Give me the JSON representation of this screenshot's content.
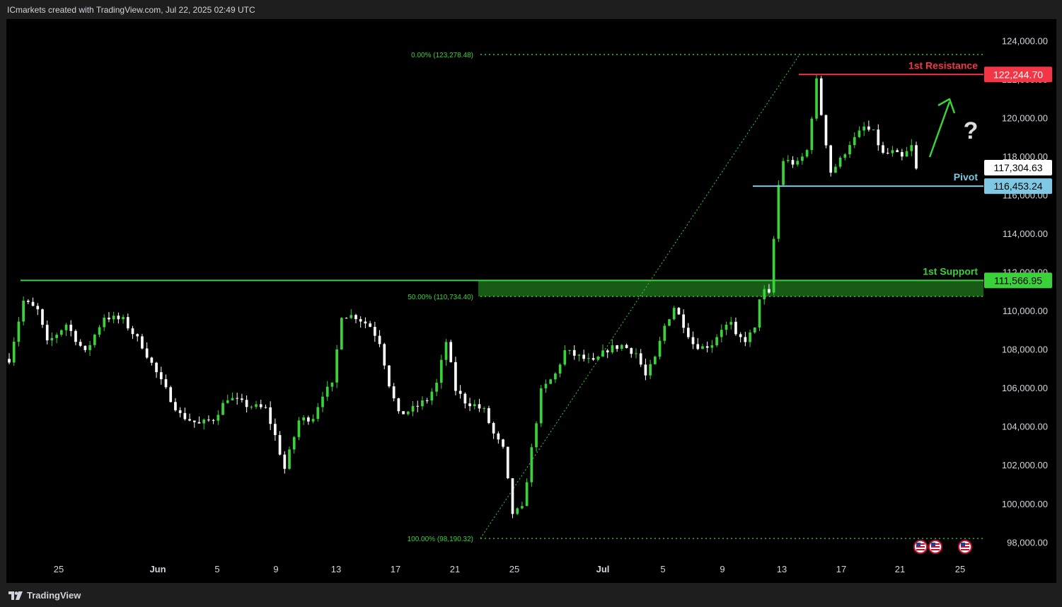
{
  "header": {
    "title": "ICmarkets created with TradingView.com, Jul 22, 2025 02:49 UTC"
  },
  "footer": {
    "brand": "TradingView"
  },
  "colors": {
    "background": "#000000",
    "up": "#3ad13a",
    "down": "#ffffff",
    "resistance": "#f23645",
    "pivot": "#7ec8e3",
    "support": "#3ad13a",
    "fib": "#3ad13a",
    "axis_text": "#d1d4dc"
  },
  "chart_data": {
    "type": "candlestick",
    "x_axis": {
      "ticks": [
        "25",
        "Jun",
        "5",
        "9",
        "13",
        "17",
        "21",
        "25",
        "Jul",
        "5",
        "9",
        "13",
        "17",
        "21",
        "25"
      ]
    },
    "y_axis": {
      "ticks": [
        "98,000.00",
        "100,000.00",
        "102,000.00",
        "104,000.00",
        "106,000.00",
        "108,000.00",
        "110,000.00",
        "112,000.00",
        "114,000.00",
        "116,000.00",
        "118,000.00",
        "120,000.00",
        "122,000.00",
        "124,000.00"
      ],
      "ylim": [
        97500,
        125000
      ]
    },
    "levels": [
      {
        "name": "1st Resistance",
        "value": "122,244.70",
        "price": 122244.7
      },
      {
        "name": "Pivot",
        "value": "116,453.24",
        "price": 116453.24
      },
      {
        "name": "1st Support",
        "value": "111,566.95",
        "price": 111566.95
      }
    ],
    "current_price": {
      "value": "117,304.63",
      "price": 117304.63
    },
    "fibonacci": [
      {
        "label": "0.00% (123,278.48)",
        "price": 123278.48
      },
      {
        "label": "50.00% (110,734.40)",
        "price": 110734.4
      },
      {
        "label": "100.00% (98,190.32)",
        "price": 98190.32
      }
    ],
    "annotations": {
      "question": "?"
    },
    "close_path": [
      [
        0,
        107500
      ],
      [
        3,
        110500
      ],
      [
        6,
        110000
      ],
      [
        8,
        108300
      ],
      [
        12,
        109300
      ],
      [
        16,
        107800
      ],
      [
        20,
        109700
      ],
      [
        24,
        109500
      ],
      [
        28,
        108200
      ],
      [
        32,
        106300
      ],
      [
        36,
        104600
      ],
      [
        40,
        104100
      ],
      [
        43,
        104400
      ],
      [
        46,
        105500
      ],
      [
        50,
        105100
      ],
      [
        54,
        104900
      ],
      [
        56,
        103500
      ],
      [
        58,
        101800
      ],
      [
        61,
        104300
      ],
      [
        64,
        104500
      ],
      [
        66,
        105700
      ],
      [
        68,
        106100
      ],
      [
        70,
        109800
      ],
      [
        73,
        109700
      ],
      [
        76,
        109200
      ],
      [
        78,
        108400
      ],
      [
        80,
        106200
      ],
      [
        82,
        104600
      ],
      [
        85,
        104900
      ],
      [
        88,
        105400
      ],
      [
        90,
        106200
      ],
      [
        92,
        108400
      ],
      [
        94,
        105900
      ],
      [
        96,
        105300
      ],
      [
        98,
        105100
      ],
      [
        100,
        104800
      ],
      [
        102,
        103600
      ],
      [
        104,
        102800
      ],
      [
        106,
        99500
      ],
      [
        108,
        99700
      ],
      [
        110,
        102800
      ],
      [
        112,
        105800
      ],
      [
        115,
        106700
      ],
      [
        117,
        107900
      ],
      [
        120,
        107600
      ],
      [
        123,
        107300
      ],
      [
        126,
        108000
      ],
      [
        129,
        108200
      ],
      [
        132,
        107800
      ],
      [
        134,
        106600
      ],
      [
        136,
        107500
      ],
      [
        138,
        109200
      ],
      [
        140,
        110200
      ],
      [
        142,
        109300
      ],
      [
        144,
        108300
      ],
      [
        146,
        108100
      ],
      [
        148,
        108300
      ],
      [
        150,
        109100
      ],
      [
        152,
        109300
      ],
      [
        153,
        108600
      ],
      [
        155,
        108500
      ],
      [
        157,
        109000
      ],
      [
        158,
        110700
      ],
      [
        159,
        111000
      ],
      [
        160,
        110800
      ],
      [
        161,
        113700
      ],
      [
        162,
        116500
      ],
      [
        163,
        117800
      ],
      [
        166,
        117600
      ],
      [
        168,
        118300
      ],
      [
        170,
        121900
      ],
      [
        171,
        120200
      ],
      [
        173,
        117200
      ],
      [
        175,
        117800
      ],
      [
        177,
        118700
      ],
      [
        178,
        118900
      ],
      [
        180,
        119500
      ],
      [
        182,
        119200
      ],
      [
        184,
        118100
      ],
      [
        186,
        118200
      ],
      [
        188,
        117900
      ],
      [
        190,
        118500
      ],
      [
        191,
        117300
      ]
    ]
  }
}
